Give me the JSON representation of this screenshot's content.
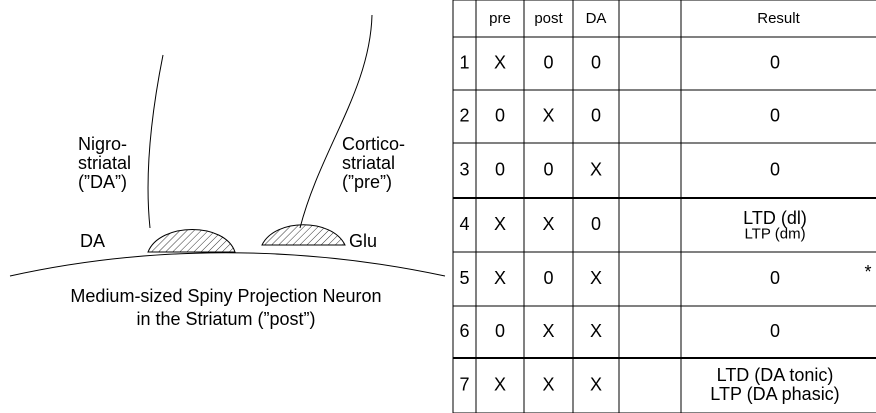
{
  "diagram": {
    "nigrostriatal_label": [
      "Nigro-",
      "striatal",
      "(”DA”)"
    ],
    "corticostriatal_label": [
      "Cortico-",
      "striatal",
      "(”pre”)"
    ],
    "da_terminal": "DA",
    "glu_terminal": "Glu",
    "neuron_label": [
      "Medium-sized Spiny Projection Neuron",
      "in the Striatum (”post”)"
    ]
  },
  "table": {
    "header": [
      "pre",
      "post",
      "DA",
      "Result"
    ],
    "rows": [
      {
        "n": 1,
        "pre": "X",
        "post": "0",
        "da": "0",
        "result": [
          "0"
        ]
      },
      {
        "n": 2,
        "pre": "0",
        "post": "X",
        "da": "0",
        "result": [
          "0"
        ]
      },
      {
        "n": 3,
        "pre": "0",
        "post": "0",
        "da": "X",
        "result": [
          "0"
        ]
      },
      {
        "n": 4,
        "pre": "X",
        "post": "X",
        "da": "0",
        "result": [
          "LTD (dl)"
        ],
        "result_sub": "LTP (dm)"
      },
      {
        "n": 5,
        "pre": "X",
        "post": "0",
        "da": "X",
        "result": [
          "0"
        ],
        "mark": "*"
      },
      {
        "n": 6,
        "pre": "0",
        "post": "X",
        "da": "X",
        "result": [
          "0"
        ]
      },
      {
        "n": 7,
        "pre": "X",
        "post": "X",
        "da": "X",
        "result": [
          "LTD (DA tonic)",
          "LTP (DA phasic)"
        ]
      }
    ]
  }
}
